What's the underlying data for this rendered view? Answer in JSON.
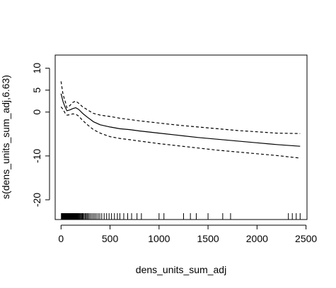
{
  "chart_data": {
    "type": "line",
    "title": "",
    "xlabel": "dens_units_sum_adj",
    "ylabel": "s(dens_units_sum_adj,6.63)",
    "xlim": [
      -60,
      2510
    ],
    "ylim": [
      -24.5,
      13
    ],
    "x_ticks": [
      0,
      500,
      1000,
      1500,
      2000,
      2500
    ],
    "y_ticks": [
      -20,
      -10,
      0,
      5,
      10
    ],
    "grid": false,
    "legend": "none",
    "series": [
      {
        "role": "estimate",
        "line_style": "solid",
        "x": [
          0,
          20,
          40,
          60,
          90,
          120,
          150,
          180,
          220,
          270,
          330,
          400,
          500,
          600,
          700,
          800,
          1000,
          1200,
          1400,
          1600,
          1800,
          2000,
          2200,
          2440
        ],
        "y": [
          4.2,
          2.4,
          1.2,
          0.3,
          0.5,
          0.8,
          1.0,
          0.6,
          -0.3,
          -1.2,
          -2.2,
          -2.9,
          -3.4,
          -3.8,
          -4.0,
          -4.3,
          -4.8,
          -5.3,
          -5.8,
          -6.2,
          -6.6,
          -7.0,
          -7.4,
          -7.8
        ]
      },
      {
        "role": "upper",
        "line_style": "dashed",
        "x": [
          0,
          20,
          40,
          60,
          90,
          120,
          150,
          180,
          220,
          270,
          330,
          400,
          500,
          600,
          700,
          800,
          1000,
          1200,
          1400,
          1600,
          1800,
          2000,
          2200,
          2440
        ],
        "y": [
          7.0,
          4.0,
          2.6,
          1.0,
          1.5,
          2.2,
          2.5,
          2.0,
          1.2,
          0.5,
          -0.3,
          -0.7,
          -1.0,
          -1.4,
          -1.7,
          -2.0,
          -2.5,
          -3.0,
          -3.4,
          -3.8,
          -4.2,
          -4.5,
          -4.8,
          -4.9
        ]
      },
      {
        "role": "lower",
        "line_style": "dashed",
        "x": [
          0,
          20,
          40,
          60,
          90,
          120,
          150,
          180,
          220,
          270,
          330,
          400,
          500,
          600,
          700,
          800,
          1000,
          1200,
          1400,
          1600,
          1800,
          2000,
          2200,
          2440
        ],
        "y": [
          1.2,
          0.6,
          -0.2,
          -0.7,
          -0.6,
          -0.4,
          -0.5,
          -0.9,
          -1.9,
          -2.9,
          -4.0,
          -4.8,
          -5.6,
          -6.0,
          -6.3,
          -6.6,
          -7.2,
          -7.7,
          -8.2,
          -8.7,
          -9.1,
          -9.5,
          -9.9,
          -10.5
        ]
      }
    ],
    "rug_x": [
      3,
      8,
      12,
      15,
      19,
      22,
      25,
      28,
      31,
      34,
      37,
      40,
      43,
      46,
      49,
      52,
      55,
      58,
      61,
      64,
      67,
      70,
      73,
      76,
      79,
      82,
      85,
      88,
      91,
      94,
      97,
      100,
      104,
      108,
      112,
      116,
      120,
      124,
      128,
      132,
      136,
      140,
      145,
      150,
      155,
      160,
      165,
      170,
      176,
      182,
      188,
      195,
      202,
      210,
      218,
      226,
      235,
      245,
      255,
      265,
      275,
      287,
      300,
      315,
      330,
      345,
      360,
      378,
      395,
      415,
      440,
      465,
      490,
      515,
      545,
      575,
      600,
      640,
      680,
      720,
      775,
      820,
      1000,
      1050,
      1250,
      1320,
      1380,
      1500,
      1650,
      1730,
      2320,
      2360,
      2400,
      2440
    ]
  }
}
